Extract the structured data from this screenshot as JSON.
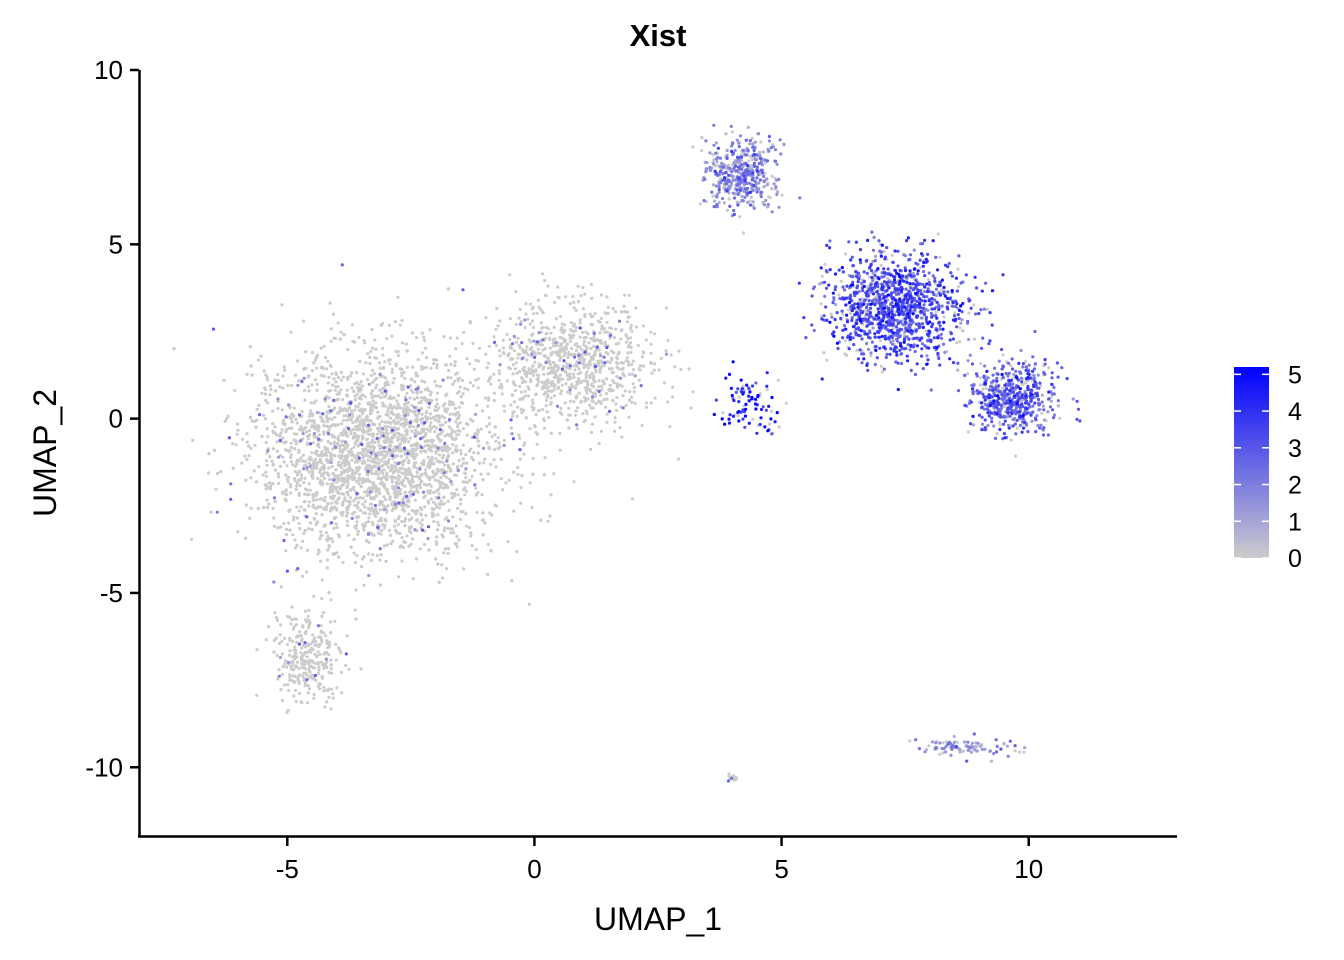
{
  "chart_data": {
    "type": "scatter",
    "title": "Xist",
    "xlabel": "UMAP_1",
    "ylabel": "UMAP_2",
    "xlim": [
      -8.0,
      13.0
    ],
    "ylim": [
      -12.0,
      10.0
    ],
    "xticks": [
      -5,
      0,
      5,
      10
    ],
    "xtick_labels": [
      "-5",
      "0",
      "5",
      "10"
    ],
    "yticks": [
      -10,
      -5,
      0,
      5,
      10
    ],
    "ytick_labels": [
      "-10",
      "-5",
      "0",
      "5",
      "10"
    ],
    "grid": false,
    "legend": {
      "placement": "right",
      "kind": "colorbar",
      "min": 0,
      "max": 5.2,
      "ticks": [
        0,
        1,
        2,
        3,
        4,
        5
      ],
      "tick_labels": [
        "0",
        "1",
        "2",
        "3",
        "4",
        "5"
      ]
    },
    "color_scale": {
      "low": "#cccccc",
      "high": "#0000ff"
    },
    "point_groups": [
      {
        "region": "left-main-cluster",
        "center": [
          -3.2,
          -1.0
        ],
        "spread": [
          2.2,
          2.6
        ],
        "expression_mean": 0.1,
        "approx_points": 3200
      },
      {
        "region": "left-bottom-tail",
        "center": [
          -4.6,
          -6.8
        ],
        "spread": [
          0.6,
          1.2
        ],
        "expression_mean": 0.1,
        "approx_points": 300
      },
      {
        "region": "center-bridge",
        "center": [
          0.8,
          1.5
        ],
        "spread": [
          1.5,
          1.6
        ],
        "expression_mean": 0.1,
        "approx_points": 900
      },
      {
        "region": "top-upper-island",
        "center": [
          4.2,
          7.0
        ],
        "spread": [
          0.7,
          0.9
        ],
        "expression_mean": 1.6,
        "approx_points": 450
      },
      {
        "region": "right-main-cluster",
        "center": [
          7.3,
          3.2
        ],
        "spread": [
          1.2,
          1.4
        ],
        "expression_mean": 3.1,
        "approx_points": 1200
      },
      {
        "region": "right-lobe",
        "center": [
          9.7,
          0.6
        ],
        "spread": [
          0.8,
          0.9
        ],
        "expression_mean": 2.6,
        "approx_points": 550
      },
      {
        "region": "middle-expressing-strand",
        "center": [
          4.3,
          0.4
        ],
        "spread": [
          0.6,
          0.9
        ],
        "expression_mean": 4.5,
        "approx_points": 90
      },
      {
        "region": "bottom-right-strand",
        "center": [
          8.7,
          -9.4
        ],
        "spread": [
          0.9,
          0.25
        ],
        "expression_mean": 1.4,
        "approx_points": 90
      },
      {
        "region": "bottom-small-island",
        "center": [
          4.0,
          -10.3
        ],
        "spread": [
          0.1,
          0.08
        ],
        "expression_mean": 0.3,
        "approx_points": 15
      }
    ]
  }
}
